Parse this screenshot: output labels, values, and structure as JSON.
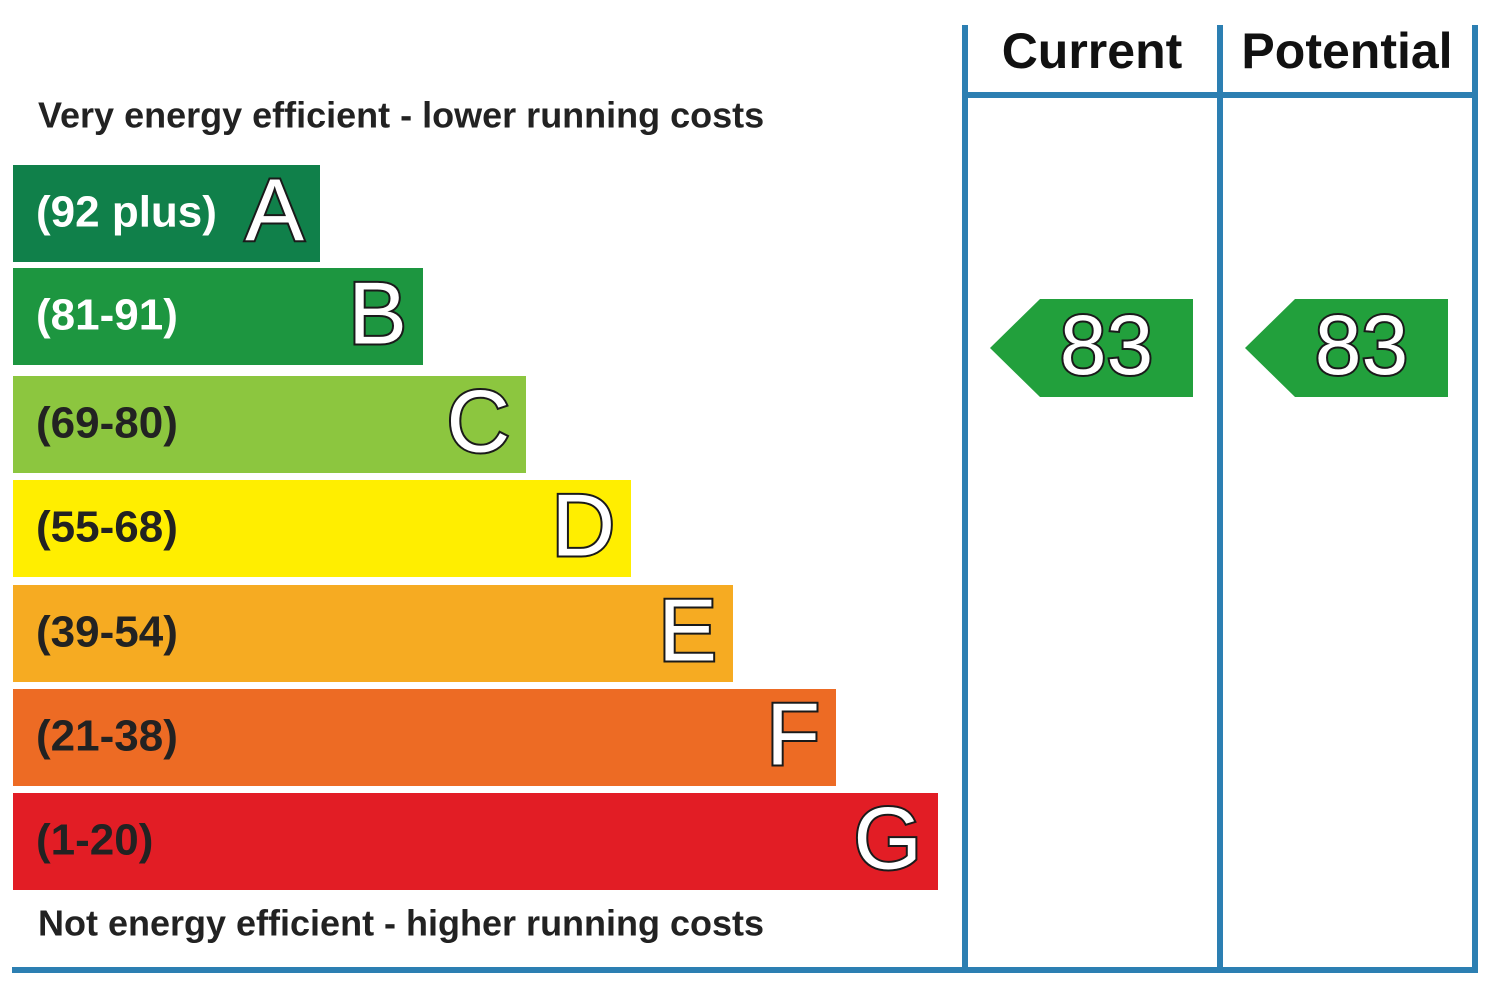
{
  "top_label": "Very energy efficient - lower running costs",
  "bottom_label": "Not energy efficient - higher running costs",
  "bands": [
    {
      "range": "(92 plus)",
      "letter": "A",
      "color": "#10804a"
    },
    {
      "range": "(81-91)",
      "letter": "B",
      "color": "#1d9640"
    },
    {
      "range": "(69-80)",
      "letter": "C",
      "color": "#8cc63f"
    },
    {
      "range": "(55-68)",
      "letter": "D",
      "color": "#ffee00"
    },
    {
      "range": "(39-54)",
      "letter": "E",
      "color": "#f6ab22"
    },
    {
      "range": "(21-38)",
      "letter": "F",
      "color": "#ed6b24"
    },
    {
      "range": "(1-20)",
      "letter": "G",
      "color": "#e21d25"
    }
  ],
  "columns": [
    {
      "header": "Current",
      "value": "83"
    },
    {
      "header": "Potential",
      "value": "83"
    }
  ],
  "arrow_color": "#22a03c"
}
